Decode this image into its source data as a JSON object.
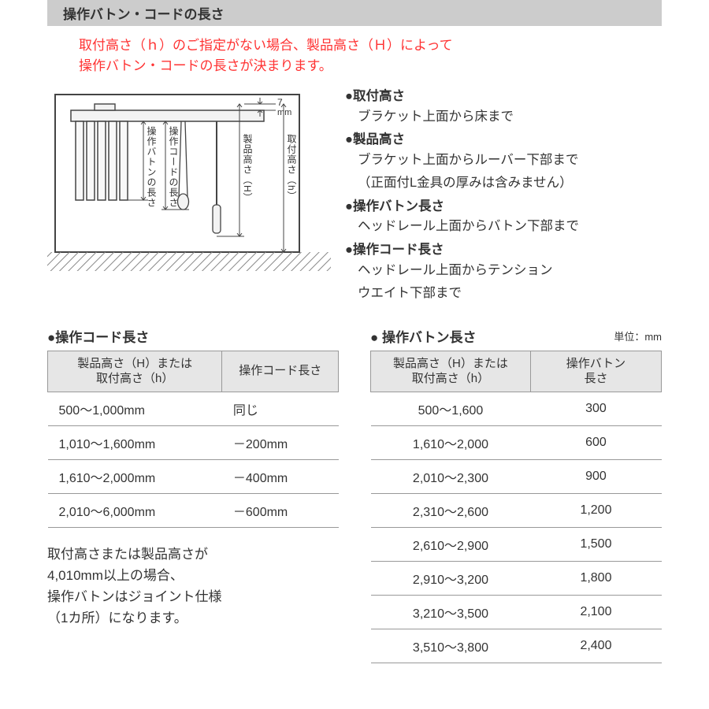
{
  "header": "操作バトン・コードの長さ",
  "warning_line1": "取付高さ（ｈ）のご指定がない場合、製品高さ（Ｈ）によって",
  "warning_line2": "操作バトン・コードの長さが決まります。",
  "diagram": {
    "gap_label": "7",
    "gap_unit": "mm",
    "labels": {
      "baton_len": "操作バトンの長さ",
      "cord_len": "操作コードの長さ",
      "product_h": "製品高さ（H）",
      "mount_h": "取付高さ（h）"
    },
    "colors": {
      "stroke": "#444444",
      "fill_wall": "#f3f3f3",
      "hatch": "#888888"
    }
  },
  "defs": [
    {
      "term": "取付高さ",
      "desc": [
        "ブラケット上面から床まで"
      ]
    },
    {
      "term": "製品高さ",
      "desc": [
        "ブラケット上面からルーバー下部まで",
        "（正面付L金具の厚みは含みません）"
      ]
    },
    {
      "term": "操作バトン長さ",
      "desc": [
        "ヘッドレール上面からバトン下部まで"
      ]
    },
    {
      "term": "操作コード長さ",
      "desc": [
        "ヘッドレール上面からテンション",
        "ウエイト下部まで"
      ]
    }
  ],
  "table_cord": {
    "title": "操作コード長さ",
    "columns": [
      "製品高さ（H）または\n取付高さ（h）",
      "操作コード長さ"
    ],
    "rows": [
      [
        "500～1,000mm",
        "同じ"
      ],
      [
        "1,010～1,600mm",
        "－200mm"
      ],
      [
        "1,610～2,000mm",
        "－400mm"
      ],
      [
        "2,010～6,000mm",
        "－600mm"
      ]
    ]
  },
  "table_baton": {
    "title": "操作バトン長さ",
    "unit": "単位：mm",
    "columns": [
      "製品高さ（H）または\n取付高さ（h）",
      "操作バトン\n長さ"
    ],
    "rows": [
      [
        "500～1,600",
        "300"
      ],
      [
        "1,610～2,000",
        "600"
      ],
      [
        "2,010～2,300",
        "900"
      ],
      [
        "2,310～2,600",
        "1,200"
      ],
      [
        "2,610～2,900",
        "1,500"
      ],
      [
        "2,910～3,200",
        "1,800"
      ],
      [
        "3,210～3,500",
        "2,100"
      ],
      [
        "3,510～3,800",
        "2,400"
      ]
    ]
  },
  "footnote": [
    "取付高さまたは製品高さが",
    "4,010mm以上の場合、",
    "操作バトンはジョイント仕様",
    "（1カ所）になります。"
  ]
}
